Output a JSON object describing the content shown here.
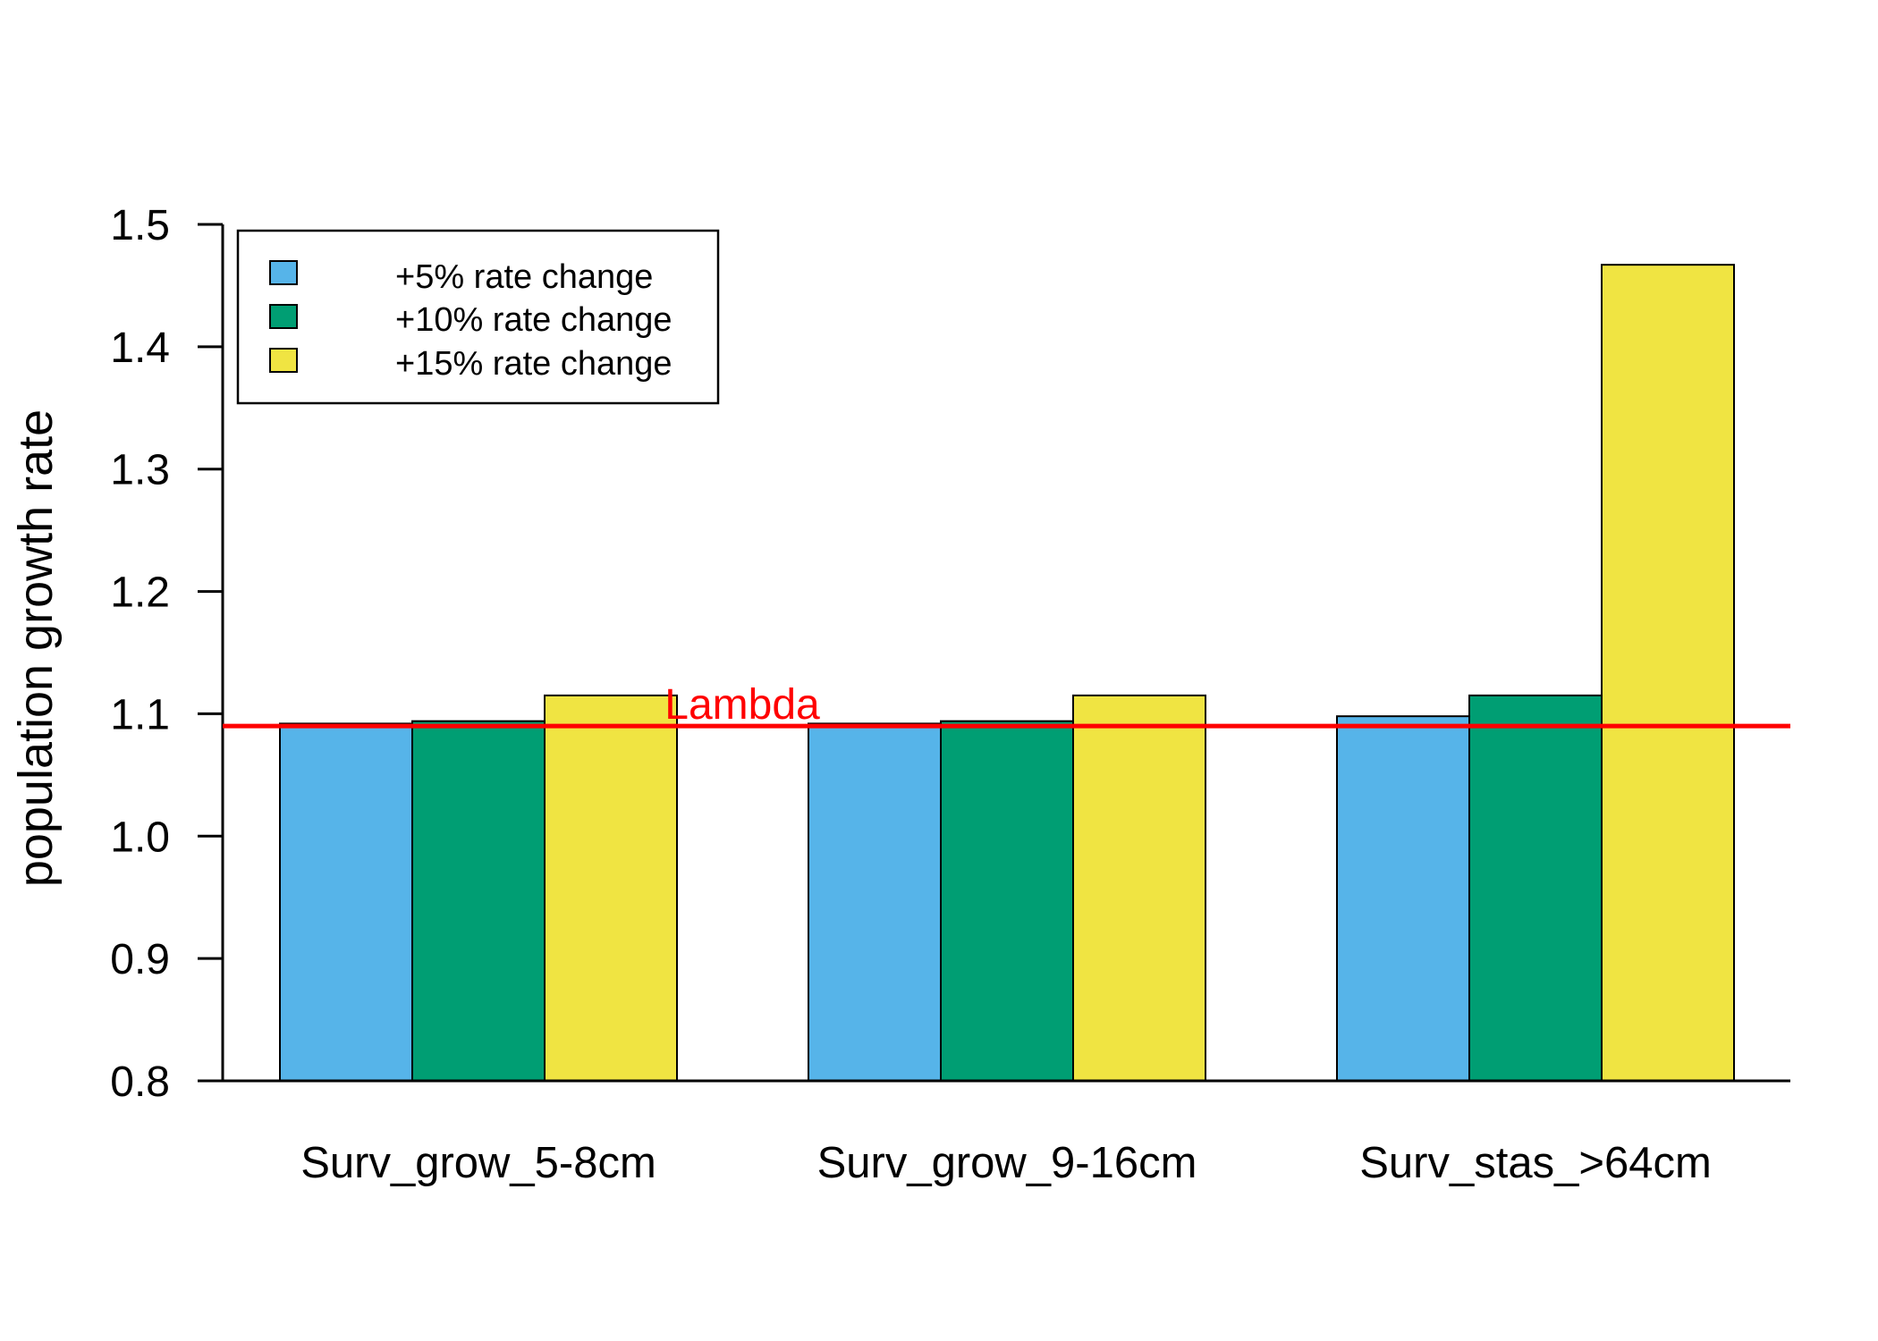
{
  "chart_data": {
    "type": "bar",
    "title": "",
    "xlabel": "",
    "ylabel": "population growth rate",
    "ylim": [
      0.8,
      1.5
    ],
    "yticks": [
      "0.8",
      "0.9",
      "1.0",
      "1.1",
      "1.2",
      "1.3",
      "1.4",
      "1.5"
    ],
    "categories": [
      "Surv_grow_5-8cm",
      "Surv_grow_9-16cm",
      "Surv_stas_>64cm"
    ],
    "series": [
      {
        "name": "+5% rate change",
        "color": "#56B4E9",
        "values": [
          1.092,
          1.092,
          1.098
        ]
      },
      {
        "name": "+10% rate change",
        "color": "#009E73",
        "values": [
          1.094,
          1.094,
          1.115
        ]
      },
      {
        "name": "+15% rate change",
        "color": "#F0E442",
        "values": [
          1.115,
          1.115,
          1.467
        ]
      }
    ],
    "reference_line": {
      "label": "Lambda",
      "value": 1.09,
      "color": "#FF0000"
    },
    "legend_position": "top-left",
    "grid": false
  }
}
